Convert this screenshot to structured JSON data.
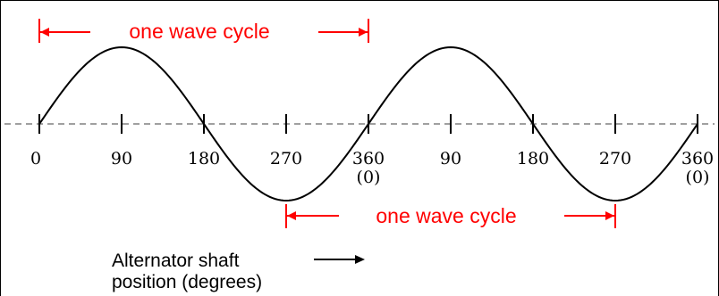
{
  "top_cycle_label": "one wave cycle",
  "bottom_cycle_label": "one wave cycle",
  "caption": {
    "line1": "Alternator shaft",
    "line2": "position (degrees)"
  },
  "ticks": [
    "0",
    "90",
    "180",
    "270",
    "360",
    "90",
    "180",
    "270",
    "360"
  ],
  "tick_sublabels": [
    "",
    "",
    "",
    "",
    "(0)",
    "",
    "",
    "",
    "(0)"
  ],
  "colors": {
    "wave": "#000000",
    "axis": "#808080",
    "cycle_marker": "#ff0000"
  }
}
